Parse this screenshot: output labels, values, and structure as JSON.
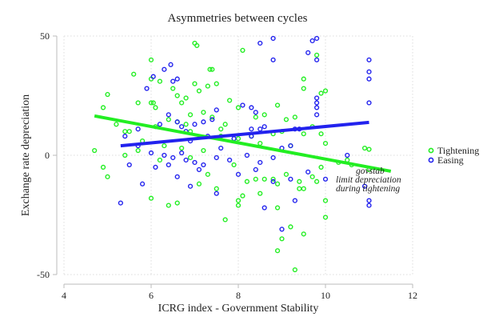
{
  "chart_data": {
    "type": "scatter",
    "title": "Asymmetries between cycles",
    "xlabel": "ICRG index - Government Stability",
    "ylabel": "Exchange rate depreciation",
    "xlim": [
      4,
      12
    ],
    "ylim": [
      -50,
      50
    ],
    "xticks": [
      4,
      6,
      8,
      10,
      12
    ],
    "yticks": [
      -50,
      0,
      50
    ],
    "grid": true,
    "legend_position": "right",
    "annotation": [
      "govstab",
      "limit depreciation",
      "during tightening"
    ],
    "series": [
      {
        "name": "Tightening",
        "color": "#22ee22",
        "fit": {
          "x": [
            4.7,
            11.5
          ],
          "y": [
            16.5,
            -6.7
          ]
        },
        "points": [
          [
            6.0,
            40
          ],
          [
            7.0,
            47
          ],
          [
            7.05,
            46
          ],
          [
            8.1,
            44
          ],
          [
            5.6,
            34
          ],
          [
            7.35,
            36
          ],
          [
            7.4,
            36
          ],
          [
            6.0,
            32
          ],
          [
            6.2,
            31
          ],
          [
            5.0,
            25.5
          ],
          [
            4.9,
            20
          ],
          [
            5.7,
            22
          ],
          [
            6.0,
            22
          ],
          [
            6.05,
            22
          ],
          [
            6.1,
            20
          ],
          [
            6.6,
            25
          ],
          [
            6.8,
            24
          ],
          [
            7.0,
            30
          ],
          [
            7.1,
            27
          ],
          [
            7.3,
            29
          ],
          [
            7.5,
            30
          ],
          [
            6.5,
            28
          ],
          [
            6.7,
            22
          ],
          [
            5.2,
            13
          ],
          [
            5.4,
            10
          ],
          [
            5.5,
            10
          ],
          [
            6.1,
            12
          ],
          [
            6.4,
            15
          ],
          [
            6.6,
            14
          ],
          [
            6.8,
            13
          ],
          [
            6.9,
            10
          ],
          [
            7.4,
            16
          ],
          [
            7.6,
            11
          ],
          [
            7.8,
            23
          ],
          [
            8.0,
            20
          ],
          [
            8.4,
            16
          ],
          [
            8.6,
            17
          ],
          [
            8.9,
            21
          ],
          [
            9.1,
            15
          ],
          [
            9.3,
            16
          ],
          [
            9.5,
            28
          ],
          [
            9.5,
            32
          ],
          [
            9.9,
            26
          ],
          [
            10.0,
            27
          ],
          [
            9.8,
            42
          ],
          [
            9.5,
            9
          ],
          [
            10.0,
            5
          ],
          [
            9.9,
            9
          ],
          [
            9.7,
            12
          ],
          [
            10.9,
            3
          ],
          [
            11.0,
            2.5
          ],
          [
            4.7,
            2
          ],
          [
            5.4,
            0
          ],
          [
            5.7,
            2
          ],
          [
            6.3,
            4
          ],
          [
            6.7,
            3
          ],
          [
            7.2,
            2
          ],
          [
            7.6,
            8
          ],
          [
            8.0,
            7
          ],
          [
            8.5,
            5
          ],
          [
            8.8,
            9
          ],
          [
            9.0,
            10
          ],
          [
            9.2,
            4
          ],
          [
            10.3,
            -3
          ],
          [
            10.5,
            -2
          ],
          [
            10.6,
            -4
          ],
          [
            11.0,
            -6
          ],
          [
            5.0,
            -9
          ],
          [
            4.9,
            -5
          ],
          [
            6.0,
            -18
          ],
          [
            6.4,
            -21
          ],
          [
            6.6,
            -20
          ],
          [
            7.1,
            -12
          ],
          [
            7.3,
            -8
          ],
          [
            7.5,
            -14
          ],
          [
            7.7,
            -27
          ],
          [
            8.0,
            -21
          ],
          [
            8.0,
            -19
          ],
          [
            8.1,
            -17
          ],
          [
            8.2,
            -11
          ],
          [
            8.4,
            -10
          ],
          [
            8.5,
            -16
          ],
          [
            8.6,
            -10
          ],
          [
            8.8,
            -10
          ],
          [
            8.9,
            -12
          ],
          [
            8.9,
            -22
          ],
          [
            9.0,
            -35
          ],
          [
            8.9,
            -40
          ],
          [
            9.3,
            -48
          ],
          [
            9.4,
            -14
          ],
          [
            9.4,
            -11
          ],
          [
            9.1,
            -8
          ],
          [
            9.5,
            -14
          ],
          [
            9.7,
            -9
          ],
          [
            9.8,
            -11
          ],
          [
            10.0,
            -19
          ],
          [
            10.0,
            -26
          ],
          [
            9.9,
            -5
          ],
          [
            9.5,
            -33
          ],
          [
            9.2,
            -30
          ],
          [
            6.9,
            17
          ],
          [
            7.2,
            18
          ],
          [
            7.7,
            13
          ],
          [
            8.3,
            8
          ],
          [
            5.8,
            6
          ],
          [
            6.2,
            -2
          ],
          [
            7.9,
            -4
          ],
          [
            6.9,
            -1
          ]
        ]
      },
      {
        "name": "Easing",
        "color": "#2222ee",
        "fit": {
          "x": [
            5.3,
            11.0
          ],
          "y": [
            4.0,
            13.8
          ]
        },
        "points": [
          [
            6.3,
            36
          ],
          [
            6.45,
            38
          ],
          [
            6.5,
            31
          ],
          [
            6.6,
            32
          ],
          [
            6.05,
            33
          ],
          [
            5.9,
            28
          ],
          [
            8.5,
            47
          ],
          [
            8.8,
            49
          ],
          [
            9.7,
            48
          ],
          [
            9.8,
            49
          ],
          [
            8.8,
            40
          ],
          [
            9.6,
            43
          ],
          [
            9.8,
            40
          ],
          [
            11.0,
            40
          ],
          [
            11.0,
            35
          ],
          [
            11.0,
            32
          ],
          [
            11.0,
            22
          ],
          [
            9.8,
            24
          ],
          [
            9.8,
            22
          ],
          [
            9.8,
            20
          ],
          [
            9.8,
            17
          ],
          [
            8.3,
            20
          ],
          [
            8.4,
            18
          ],
          [
            8.1,
            21
          ],
          [
            8.6,
            12
          ],
          [
            8.5,
            11
          ],
          [
            8.3,
            11
          ],
          [
            9.3,
            11
          ],
          [
            9.4,
            11
          ],
          [
            9.2,
            4
          ],
          [
            8.3,
            8
          ],
          [
            7.9,
            7
          ],
          [
            7.5,
            19
          ],
          [
            7.4,
            15
          ],
          [
            7.2,
            14
          ],
          [
            7.0,
            13
          ],
          [
            6.8,
            10
          ],
          [
            6.7,
            12
          ],
          [
            6.6,
            14
          ],
          [
            6.4,
            17
          ],
          [
            6.2,
            13
          ],
          [
            5.7,
            11
          ],
          [
            5.4,
            8
          ],
          [
            5.7,
            4
          ],
          [
            6.0,
            1
          ],
          [
            6.3,
            0
          ],
          [
            6.5,
            -1
          ],
          [
            6.7,
            1
          ],
          [
            7.0,
            -3
          ],
          [
            7.2,
            -4
          ],
          [
            7.5,
            -1
          ],
          [
            7.8,
            -2
          ],
          [
            8.2,
            0
          ],
          [
            8.5,
            -3
          ],
          [
            8.8,
            -1
          ],
          [
            9.0,
            3
          ],
          [
            9.6,
            -7
          ],
          [
            9.2,
            -10
          ],
          [
            10.0,
            -10
          ],
          [
            10.5,
            0
          ],
          [
            10.9,
            -13
          ],
          [
            11.0,
            -19
          ],
          [
            11.0,
            -21
          ],
          [
            5.3,
            -20
          ],
          [
            5.8,
            -12
          ],
          [
            6.1,
            -5
          ],
          [
            6.6,
            -9
          ],
          [
            6.9,
            -13
          ],
          [
            7.1,
            -6
          ],
          [
            7.5,
            -16
          ],
          [
            8.0,
            -8
          ],
          [
            8.4,
            -6
          ],
          [
            8.8,
            -11
          ],
          [
            9.0,
            -31
          ],
          [
            9.3,
            -19
          ],
          [
            8.6,
            -22
          ],
          [
            6.8,
            -2
          ],
          [
            7.3,
            8
          ],
          [
            6.9,
            6
          ],
          [
            7.6,
            3
          ],
          [
            5.5,
            -4
          ],
          [
            6.4,
            -4
          ]
        ]
      }
    ]
  }
}
